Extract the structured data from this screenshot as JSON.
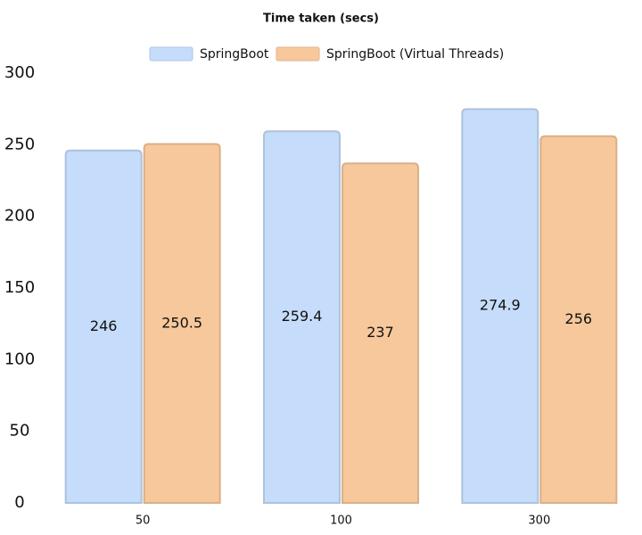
{
  "chart_data": {
    "type": "bar",
    "title": "Time taken (secs)",
    "categories": [
      "50",
      "100",
      "300"
    ],
    "series": [
      {
        "name": "SpringBoot",
        "color": "#c5dcfa",
        "values": [
          246,
          259.4,
          274.9
        ]
      },
      {
        "name": "SpringBoot (Virtual Threads)",
        "color": "#f7c89b",
        "values": [
          250.5,
          237,
          256
        ]
      }
    ],
    "ylim": [
      0,
      300
    ],
    "yticks": [
      0,
      50,
      100,
      150,
      200,
      250,
      300
    ],
    "grid": false,
    "legend": "top"
  }
}
